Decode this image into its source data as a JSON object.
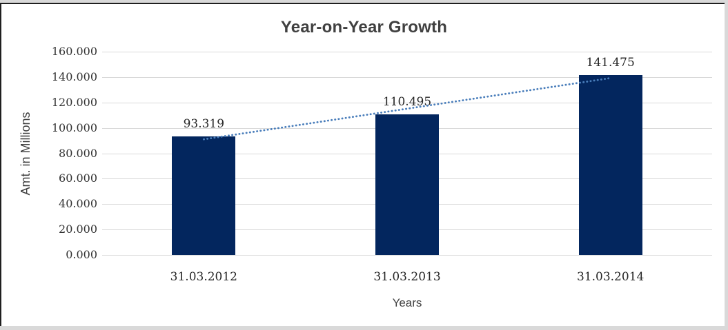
{
  "window": {
    "background": "#ffffff",
    "frame_border_color": "#1f1f1f",
    "frame_strip_color": "#d9d9d9"
  },
  "chart_data": {
    "type": "bar",
    "title": "Year-on-Year Growth",
    "xlabel": "Years",
    "ylabel": "Amt. in Millions",
    "categories": [
      "31.03.2012",
      "31.03.2013",
      "31.03.2014"
    ],
    "values": [
      93.319,
      110.495,
      141.475
    ],
    "value_labels": [
      "93.319",
      "110.495",
      "141.475"
    ],
    "ylim": [
      0,
      160
    ],
    "ytick_step": 20,
    "ytick_labels": [
      "160.000",
      "140.000",
      "120.000",
      "100.000",
      "80.000",
      "60.000",
      "40.000",
      "20.000",
      "0.000"
    ],
    "grid": true,
    "gridline_color": "#d9d9d9",
    "bar_color": "#03265e",
    "text_color": "#262626",
    "title_color": "#404040",
    "legend": "none",
    "trendline": {
      "type": "linear",
      "style": "dotted",
      "color": "#4a7ebb",
      "start_value": 91.0,
      "end_value": 139.2
    }
  }
}
